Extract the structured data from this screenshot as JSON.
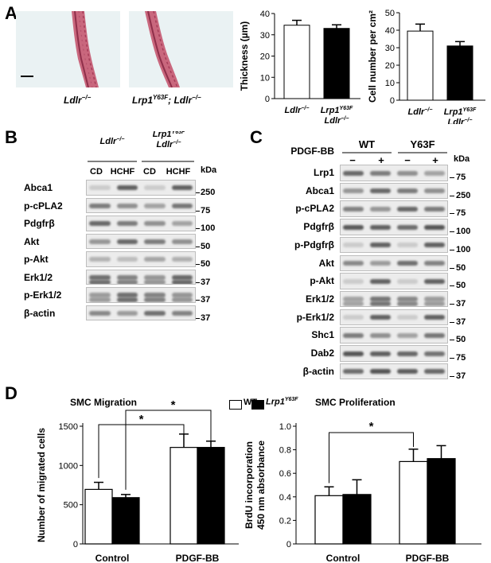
{
  "panelA": {
    "label": "A",
    "histo_captions": [
      {
        "base": "Ldlr",
        "sup": "−/−"
      },
      {
        "base": "Lrp1",
        "sup": "Y63F",
        "mid": "; Ldlr",
        "sup2": "−/−"
      }
    ],
    "groups": [
      {
        "line1": "Ldlr",
        "sup1": "−/−"
      },
      {
        "line1": "Lrp1",
        "sup1": "Y63F",
        "line2": "Ldlr",
        "sup2": "−/−"
      }
    ]
  },
  "panelB": {
    "label": "B",
    "groups": [
      {
        "line1": "Ldlr",
        "sup1": "−/−"
      },
      {
        "line1": "Lrp1",
        "sup1": "Y63F",
        "line2": "Ldlr",
        "sup2": "−/−"
      }
    ],
    "lanes": [
      "CD",
      "HCHF",
      "CD",
      "HCHF"
    ],
    "kda_header": "kDa",
    "rows": [
      {
        "name": "Abca1",
        "kda": "250"
      },
      {
        "name": "p-cPLA2",
        "kda": "75"
      },
      {
        "name": "Pdgfrβ",
        "kda": "100"
      },
      {
        "name": "Akt",
        "kda": "50"
      },
      {
        "name": "p-Akt",
        "kda": "50"
      },
      {
        "name": "Erk1/2",
        "kda": "37"
      },
      {
        "name": "p-Erk1/2",
        "kda": "37"
      },
      {
        "name": "β-actin",
        "kda": "37"
      }
    ]
  },
  "panelC": {
    "label": "C",
    "treatment": "PDGF-BB",
    "groups": [
      "WT",
      "Y63F"
    ],
    "signs": [
      "−",
      "+",
      "−",
      "+"
    ],
    "kda_header": "kDa",
    "rows": [
      {
        "name": "Lrp1",
        "kda": "75"
      },
      {
        "name": "Abca1",
        "kda": "250"
      },
      {
        "name": "p-cPLA2",
        "kda": "75"
      },
      {
        "name": "Pdgfrβ",
        "kda": "100"
      },
      {
        "name": "p-Pdgfrβ",
        "kda": "100"
      },
      {
        "name": "Akt",
        "kda": "50"
      },
      {
        "name": "p-Akt",
        "kda": "50"
      },
      {
        "name": "Erk1/2",
        "kda": "37"
      },
      {
        "name": "p-Erk1/2",
        "kda": "37"
      },
      {
        "name": "Shc1",
        "kda": "50"
      },
      {
        "name": "Dab2",
        "kda": "75"
      },
      {
        "name": "β-actin",
        "kda": "37"
      }
    ]
  },
  "panelD": {
    "label": "D",
    "legend": [
      {
        "name": "WT",
        "color": "#ffffff"
      },
      {
        "name": "Lrp1",
        "sup": "Y63F",
        "color": "#000000"
      }
    ]
  },
  "chart_data": [
    {
      "type": "bar",
      "id": "thickness",
      "ylabel": "Thickness (µm)",
      "ylim": [
        0,
        40
      ],
      "yticks": [
        0,
        10,
        20,
        30,
        40
      ],
      "categories": [
        "Ldlr−/−",
        "Lrp1Y63F Ldlr−/−"
      ],
      "values": [
        34.5,
        33.0
      ],
      "errors": [
        2.3,
        1.7
      ],
      "colors": [
        "#ffffff",
        "#000000"
      ]
    },
    {
      "type": "bar",
      "id": "cellnumber",
      "ylabel": "Cell number per cm²",
      "ylim": [
        0,
        50
      ],
      "yticks": [
        0,
        10,
        20,
        30,
        40,
        50
      ],
      "categories": [
        "Ldlr−/−",
        "Lrp1Y63F Ldlr−/−"
      ],
      "values": [
        39.5,
        31.0
      ],
      "errors": [
        4.0,
        2.5
      ],
      "colors": [
        "#ffffff",
        "#000000"
      ]
    },
    {
      "type": "bar",
      "id": "migration",
      "title": "SMC Migration",
      "ylabel": "Number of migrated cells",
      "ylim": [
        0,
        1500
      ],
      "yticks": [
        0,
        500,
        1000,
        1500
      ],
      "categories": [
        "Control",
        "PDGF-BB"
      ],
      "series": [
        {
          "name": "WT",
          "values": [
            695,
            1230
          ],
          "errors": [
            90,
            170
          ],
          "color": "#ffffff"
        },
        {
          "name": "Lrp1Y63F",
          "values": [
            590,
            1230
          ],
          "errors": [
            40,
            80
          ],
          "color": "#000000"
        }
      ],
      "annotations": [
        "*",
        "*"
      ]
    },
    {
      "type": "bar",
      "id": "proliferation",
      "title": "SMC Proliferation",
      "ylabel": "BrdU incorporation 450 nm absorbance",
      "ylabel_lines": [
        "BrdU incorporation",
        "450 nm absorbance"
      ],
      "ylim": [
        0,
        1.0
      ],
      "yticks": [
        "0",
        "0.2",
        "0.4",
        "0.6",
        "0.8",
        "1.0"
      ],
      "categories": [
        "Control",
        "PDGF-BB"
      ],
      "series": [
        {
          "name": "WT",
          "values": [
            0.41,
            0.7
          ],
          "errors": [
            0.075,
            0.105
          ],
          "color": "#ffffff"
        },
        {
          "name": "Lrp1Y63F",
          "values": [
            0.42,
            0.725
          ],
          "errors": [
            0.125,
            0.11
          ],
          "color": "#000000"
        }
      ],
      "annotations": [
        "*"
      ]
    }
  ]
}
